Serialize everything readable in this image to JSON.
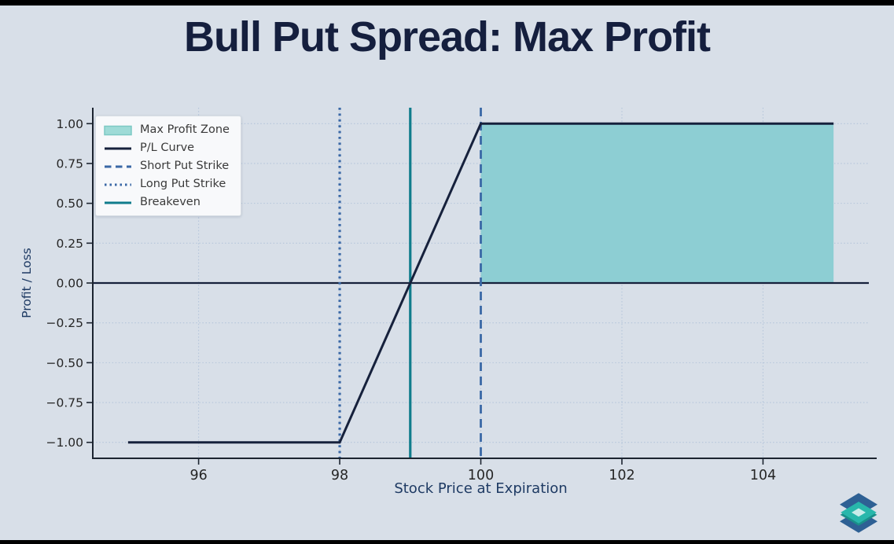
{
  "page": {
    "title": "Bull Put Spread: Max Profit"
  },
  "chart_data": {
    "type": "line",
    "title": "Bull Put Spread: Max Profit",
    "xlabel": "Stock Price at Expiration",
    "ylabel": "Profit / Loss",
    "xlim": [
      94.5,
      105.5
    ],
    "ylim": [
      -1.1,
      1.1
    ],
    "grid": true,
    "legend_position": "upper left",
    "xticks": [
      96,
      98,
      100,
      102,
      104
    ],
    "xtick_labels": [
      "96",
      "98",
      "100",
      "102",
      "104"
    ],
    "yticks": [
      -1.0,
      -0.75,
      -0.5,
      -0.25,
      0.0,
      0.25,
      0.5,
      0.75,
      1.0
    ],
    "ytick_labels": [
      "−1.00",
      "−0.75",
      "−0.50",
      "−0.25",
      "0.00",
      "0.25",
      "0.50",
      "0.75",
      "1.00"
    ],
    "series": [
      {
        "name": "P/L Curve",
        "x": [
          95,
          98,
          100,
          105
        ],
        "y": [
          -1,
          -1,
          1,
          1
        ]
      }
    ],
    "max_profit_zone": {
      "name": "Max Profit Zone",
      "x0": 100,
      "x1": 105,
      "y0": 0,
      "y1": 1
    },
    "zero_line_y": 0,
    "vlines": [
      {
        "name": "Long Put Strike",
        "x": 98,
        "style": "dotted",
        "color_key": "long_put"
      },
      {
        "name": "Breakeven",
        "x": 99,
        "style": "solid",
        "color_key": "breakeven"
      },
      {
        "name": "Short Put Strike",
        "x": 100,
        "style": "dashed",
        "color_key": "short_put"
      }
    ],
    "legend": {
      "items": [
        {
          "label": "Max Profit Zone",
          "swatch": "patch",
          "color_key": "zone_legend_fill"
        },
        {
          "label": "P/L Curve",
          "swatch": "solid",
          "color_key": "pl_curve"
        },
        {
          "label": "Short Put Strike",
          "swatch": "dashed",
          "color_key": "short_put"
        },
        {
          "label": "Long Put Strike",
          "swatch": "dotted",
          "color_key": "long_put"
        },
        {
          "label": "Breakeven",
          "swatch": "solid",
          "color_key": "breakeven"
        }
      ]
    },
    "colors": {
      "background": "#d8dfe8",
      "frame_bars": "#000000",
      "title": "#151f3e",
      "pl_curve": "#16213c",
      "short_put": "#3a68a6",
      "long_put": "#3a68a6",
      "breakeven": "#107c8c",
      "zone_fill": "#8dced3",
      "zone_legend_fill": "#9edbd7",
      "zone_legend_border": "#7cc9c4",
      "grid": "#a9bdd6",
      "spine": "#1c2430",
      "tick_label": "#262626",
      "axis_label": "#1e3a63",
      "legend_bg": "#f8f9fb",
      "legend_border": "#d7dde3",
      "legend_text": "#3a3a3a"
    }
  },
  "logo": {
    "name": "stacked-diamonds-logo",
    "colors": {
      "dark_blue": "#2e6094",
      "teal": "#28b7ab",
      "dark_teal": "#1a8f8a",
      "light": "#c9ecea"
    }
  }
}
